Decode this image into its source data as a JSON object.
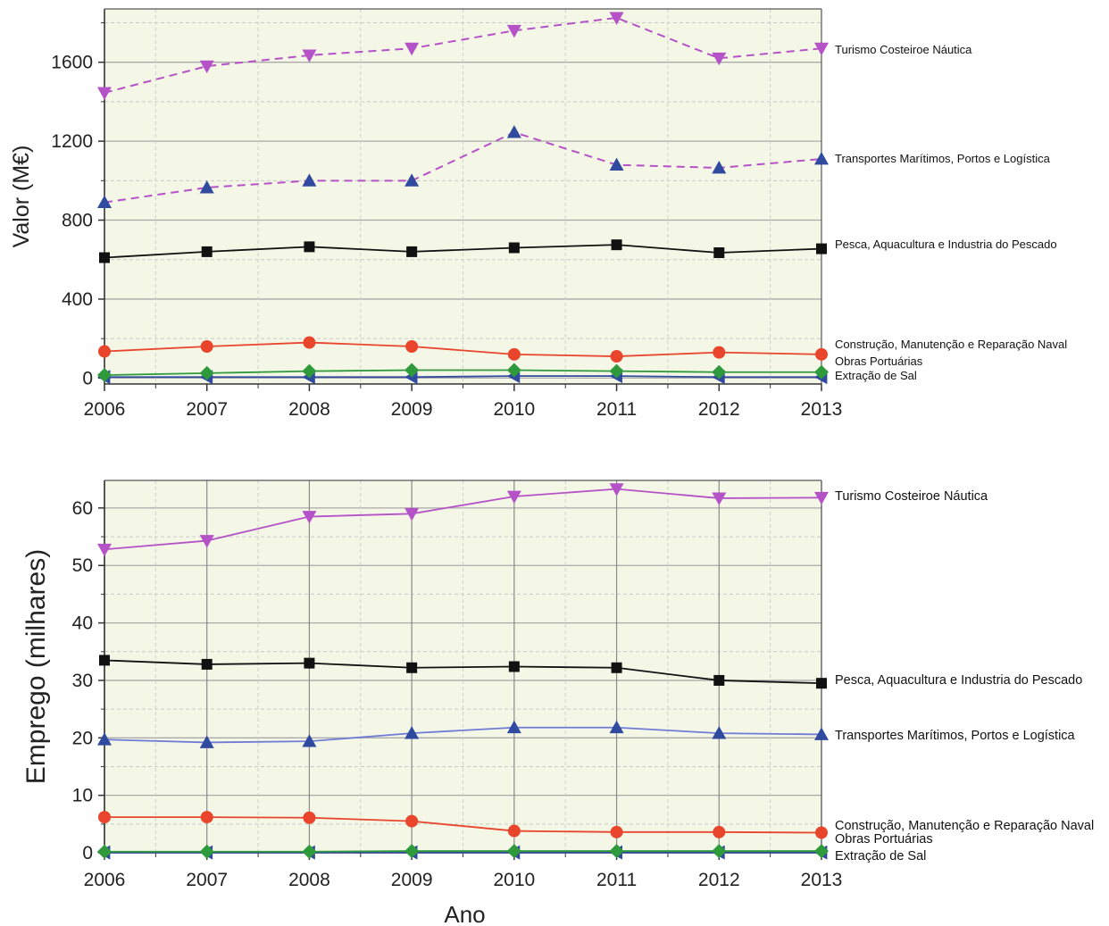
{
  "chart_data": [
    {
      "type": "line",
      "ylabel": "Valor (M€)",
      "xlabel": "",
      "x": [
        "2006",
        "2007",
        "2008",
        "2009",
        "2010",
        "2011",
        "2012",
        "2013"
      ],
      "xlim": [
        2006,
        2013
      ],
      "ylim": [
        -30,
        1870
      ],
      "yticks": [
        0,
        400,
        800,
        1200,
        1600
      ],
      "grid": true,
      "legend": "right",
      "series": [
        {
          "name": "Turismo Costeiroe Náutica",
          "color": "#b552c7",
          "marker": "triangle-down",
          "dashed": true,
          "values": [
            1445,
            1580,
            1635,
            1670,
            1760,
            1825,
            1620,
            1670
          ]
        },
        {
          "name": "Transportes Marítimos, Portos e Logística",
          "color": "#b552c7",
          "marker": "triangle-up",
          "marker_color": "#2f4a9e",
          "dashed": true,
          "values": [
            890,
            965,
            1000,
            1000,
            1245,
            1080,
            1065,
            1110
          ]
        },
        {
          "name": "Pesca, Aquacultura e Industria do Pescado",
          "color": "#111111",
          "marker": "square",
          "dashed": false,
          "values": [
            610,
            640,
            665,
            640,
            660,
            675,
            635,
            655
          ]
        },
        {
          "name": "Construção, Manutenção e Reparação Naval",
          "color": "#e8452c",
          "marker": "circle",
          "dashed": false,
          "values": [
            135,
            160,
            180,
            160,
            120,
            110,
            130,
            120
          ]
        },
        {
          "name": "Obras Portuárias",
          "color": "#2e9a3c",
          "marker": "diamond",
          "dashed": false,
          "values": [
            15,
            25,
            35,
            40,
            40,
            35,
            30,
            30
          ]
        },
        {
          "name": "Extração de Sal",
          "color": "#2f4a9e",
          "marker": "triangle-left",
          "dashed": false,
          "values": [
            5,
            5,
            5,
            5,
            10,
            10,
            5,
            5
          ]
        }
      ]
    },
    {
      "type": "line",
      "ylabel": "Emprego (milhares)",
      "xlabel": "Ano",
      "x": [
        "2006",
        "2007",
        "2008",
        "2009",
        "2010",
        "2011",
        "2012",
        "2013"
      ],
      "xlim": [
        2006,
        2013
      ],
      "ylim": [
        0,
        64.8
      ],
      "yticks": [
        0,
        10,
        20,
        30,
        40,
        50,
        60
      ],
      "grid": true,
      "legend": "right",
      "series": [
        {
          "name": "Turismo Costeiroe Náutica",
          "color": "#b552c7",
          "marker": "triangle-down",
          "dashed": false,
          "values": [
            52.8,
            54.3,
            58.5,
            59.0,
            62.0,
            63.3,
            61.7,
            61.8
          ]
        },
        {
          "name": "Pesca, Aquacultura e Industria do Pescado",
          "color": "#111111",
          "marker": "square",
          "dashed": false,
          "values": [
            33.5,
            32.8,
            33.0,
            32.2,
            32.4,
            32.2,
            30.0,
            29.5
          ]
        },
        {
          "name": "Transportes Marítimos, Portos e Logística",
          "color": "#6f7cd6",
          "marker": "triangle-up",
          "marker_color": "#2f4a9e",
          "dashed": false,
          "values": [
            19.7,
            19.2,
            19.4,
            20.8,
            21.8,
            21.8,
            20.8,
            20.6
          ]
        },
        {
          "name": "Construção, Manutenção e Reparação Naval",
          "color": "#e8452c",
          "marker": "circle",
          "dashed": false,
          "values": [
            6.2,
            6.2,
            6.1,
            5.5,
            3.8,
            3.6,
            3.6,
            3.5
          ]
        },
        {
          "name": "Obras Portuárias",
          "color": "#2e9a3c",
          "marker": "diamond",
          "dashed": false,
          "values": [
            0.2,
            0.2,
            0.2,
            0.3,
            0.3,
            0.3,
            0.3,
            0.3
          ]
        },
        {
          "name": "Extração de Sal",
          "color": "#2f4a9e",
          "marker": "triangle-left",
          "dashed": false,
          "values": [
            0.05,
            0.05,
            0.05,
            0.05,
            0.05,
            0.05,
            0.05,
            0.05
          ]
        }
      ]
    }
  ]
}
